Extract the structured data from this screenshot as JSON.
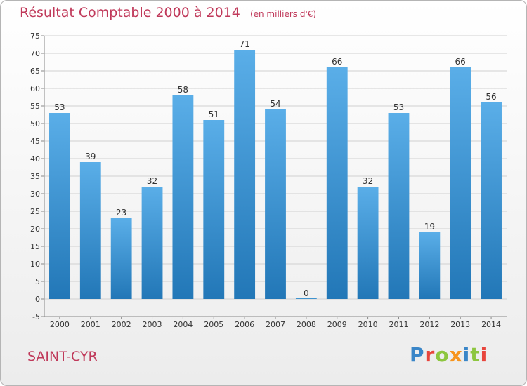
{
  "title": "Résultat Comptable 2000 à 2014",
  "subtitle": "(en milliers d'€)",
  "commune": "SAINT-CYR",
  "logo": {
    "text": "Proxiti",
    "letter_colors": [
      "#3a86c8",
      "#e8453c",
      "#8dc63f",
      "#f7941d",
      "#3a86c8",
      "#8dc63f",
      "#e8453c"
    ]
  },
  "colors": {
    "bar_light": "#5aaee8",
    "bar_dark": "#2277b7",
    "title": "#c0395a",
    "grid": "#d0d0d0",
    "axis_text": "#333333"
  },
  "chart_data": {
    "type": "bar",
    "categories": [
      "2000",
      "2001",
      "2002",
      "2003",
      "2004",
      "2005",
      "2006",
      "2007",
      "2008",
      "2009",
      "2010",
      "2011",
      "2012",
      "2013",
      "2014"
    ],
    "values": [
      53,
      39,
      23,
      32,
      58,
      51,
      71,
      54,
      0,
      66,
      32,
      53,
      19,
      66,
      56
    ],
    "ylim": [
      -5,
      75
    ],
    "yticks": [
      -5,
      0,
      5,
      10,
      15,
      20,
      25,
      30,
      35,
      40,
      45,
      50,
      55,
      60,
      65,
      70,
      75
    ],
    "grid": true,
    "data_labels": true
  }
}
